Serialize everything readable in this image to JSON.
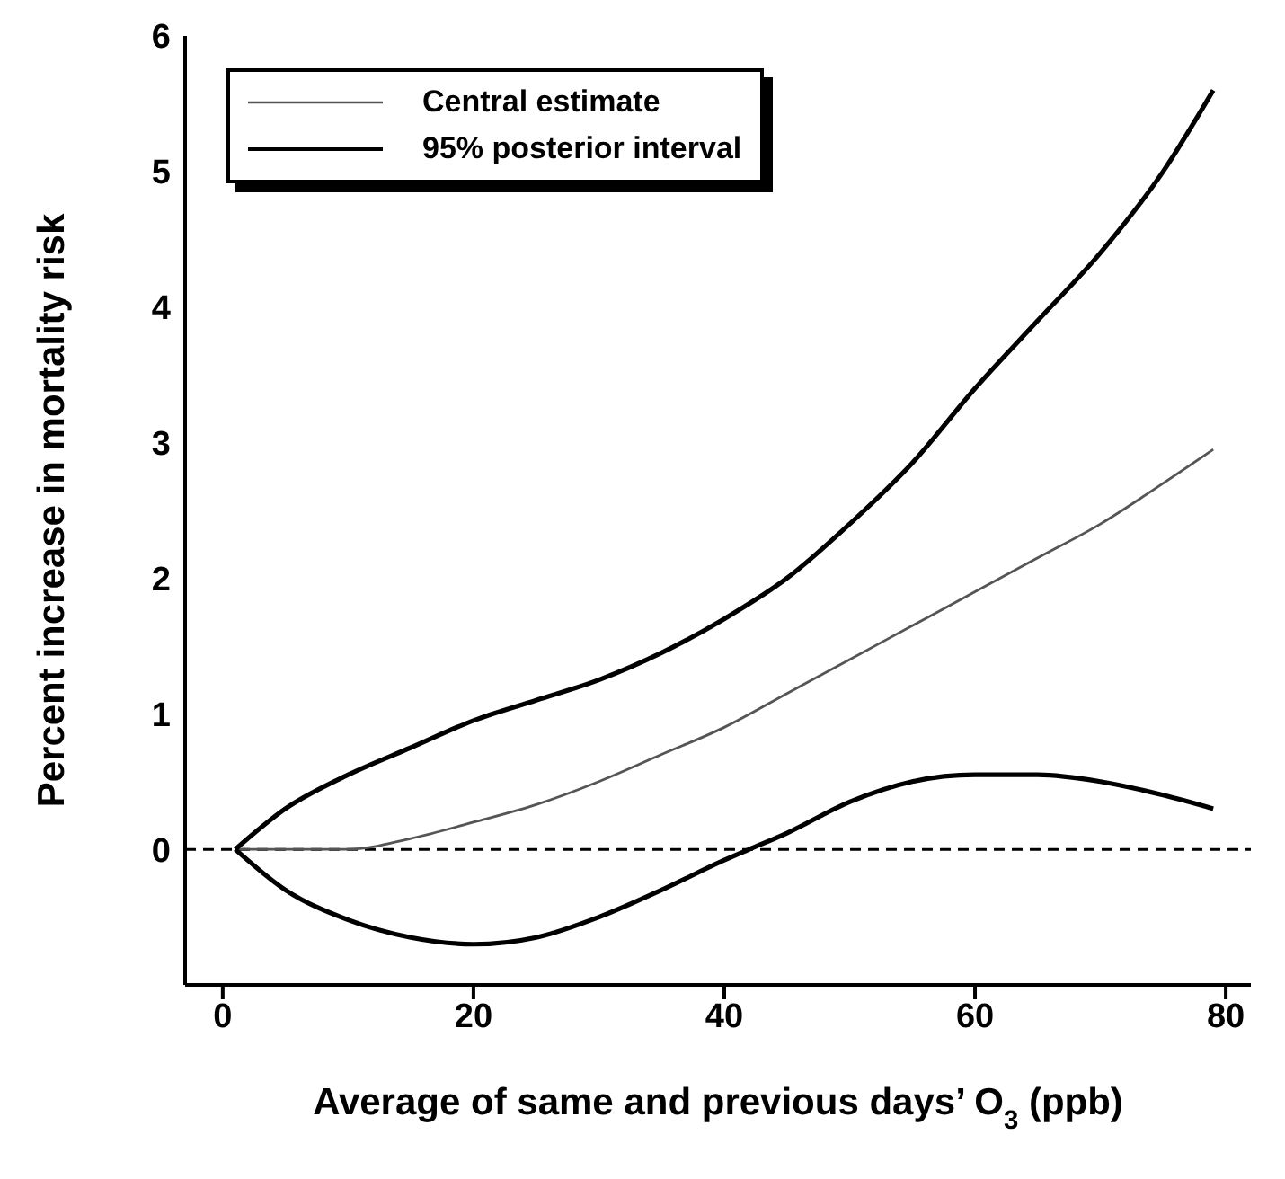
{
  "chart_data": {
    "type": "line",
    "xlabel": "Average of same and previous days’ O$_{3}$ (ppb)",
    "ylabel": "Percent increase in mortality risk",
    "xlim": [
      -3,
      82
    ],
    "xticks": [
      0,
      20,
      40,
      60,
      80
    ],
    "ylim": [
      -1,
      6
    ],
    "yticks": [
      0,
      1,
      2,
      3,
      4,
      5,
      6
    ],
    "legend": "top left",
    "marker": "none",
    "ref_lines": [
      {
        "axis": "y",
        "value": 0,
        "color": "#000000",
        "line_style": "dashed"
      }
    ],
    "series": [
      {
        "name": "Central estimate",
        "color": "#555555",
        "line_style": "solid",
        "x": [
          1,
          5,
          10,
          15,
          20,
          25,
          30,
          35,
          40,
          45,
          50,
          55,
          60,
          65,
          70,
          75,
          79
        ],
        "values": [
          0,
          0,
          0,
          0.08,
          0.2,
          0.33,
          0.5,
          0.7,
          0.9,
          1.15,
          1.4,
          1.65,
          1.9,
          2.15,
          2.4,
          2.7,
          2.95
        ]
      },
      {
        "name": "95% posterior interval",
        "color": "#000000",
        "line_style": "solid",
        "x": [
          1,
          5,
          10,
          15,
          20,
          25,
          30,
          35,
          40,
          45,
          50,
          55,
          60,
          65,
          70,
          75,
          79
        ],
        "values": [
          0,
          0.3,
          0.55,
          0.75,
          0.95,
          1.1,
          1.25,
          1.45,
          1.7,
          2.0,
          2.4,
          2.85,
          3.4,
          3.9,
          4.4,
          5.0,
          5.6
        ]
      },
      {
        "color": "#000000",
        "line_style": "solid",
        "x": [
          1,
          5,
          10,
          15,
          20,
          25,
          30,
          35,
          40,
          42,
          45,
          50,
          55,
          60,
          65,
          70,
          75,
          79
        ],
        "values": [
          0,
          -0.3,
          -0.52,
          -0.65,
          -0.7,
          -0.65,
          -0.5,
          -0.3,
          -0.08,
          0,
          0.12,
          0.35,
          0.5,
          0.55,
          0.55,
          0.5,
          0.4,
          0.3
        ]
      }
    ]
  }
}
